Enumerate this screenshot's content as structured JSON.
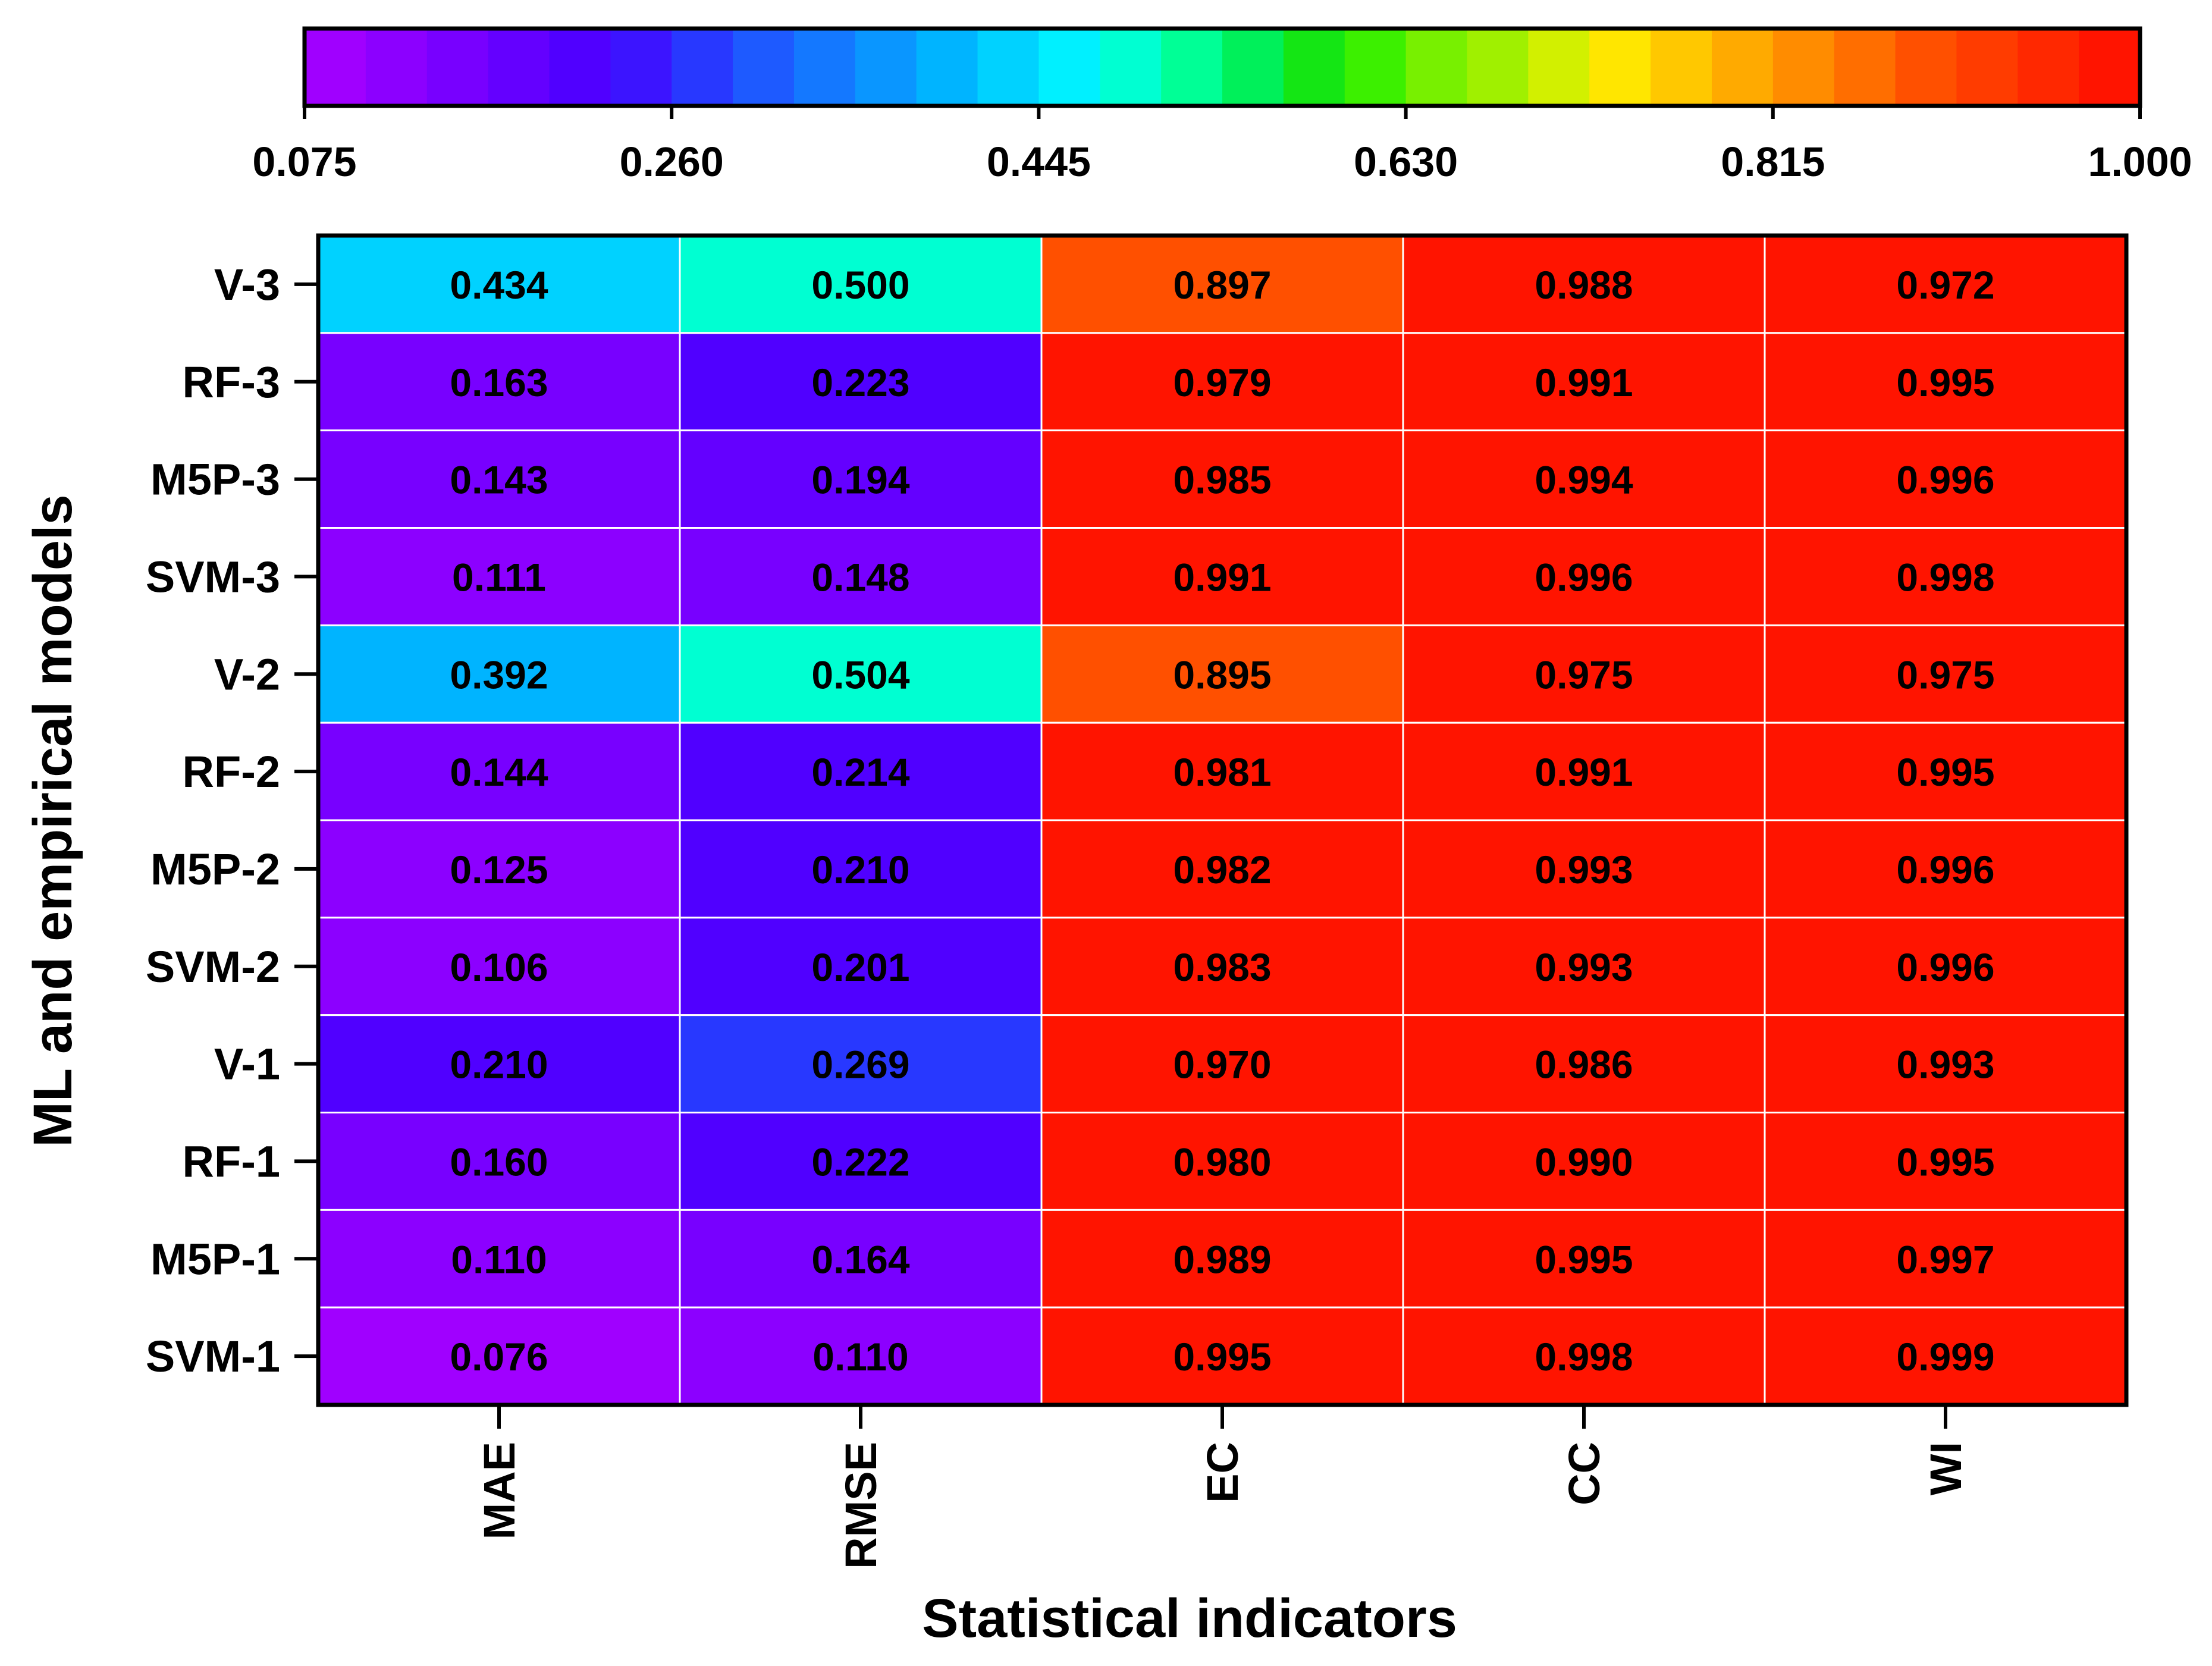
{
  "chart_data": {
    "type": "heatmap",
    "title": "",
    "xlabel": "Statistical indicators",
    "ylabel": "ML and empirical models",
    "columns": [
      "MAE",
      "RMSE",
      "EC",
      "CC",
      "WI"
    ],
    "rows": [
      "V-3",
      "RF-3",
      "M5P-3",
      "SVM-3",
      "V-2",
      "RF-2",
      "M5P-2",
      "SVM-2",
      "V-1",
      "RF-1",
      "M5P-1",
      "SVM-1"
    ],
    "values": [
      [
        0.434,
        0.5,
        0.897,
        0.988,
        0.972
      ],
      [
        0.163,
        0.223,
        0.979,
        0.991,
        0.995
      ],
      [
        0.143,
        0.194,
        0.985,
        0.994,
        0.996
      ],
      [
        0.111,
        0.148,
        0.991,
        0.996,
        0.998
      ],
      [
        0.392,
        0.504,
        0.895,
        0.975,
        0.975
      ],
      [
        0.144,
        0.214,
        0.981,
        0.991,
        0.995
      ],
      [
        0.125,
        0.21,
        0.982,
        0.993,
        0.996
      ],
      [
        0.106,
        0.201,
        0.983,
        0.993,
        0.996
      ],
      [
        0.21,
        0.269,
        0.97,
        0.986,
        0.993
      ],
      [
        0.16,
        0.222,
        0.98,
        0.99,
        0.995
      ],
      [
        0.11,
        0.164,
        0.989,
        0.995,
        0.997
      ],
      [
        0.076,
        0.11,
        0.995,
        0.998,
        0.999
      ]
    ],
    "value_labels": [
      [
        "0.434",
        "0.500",
        "0.897",
        "0.988",
        "0.972"
      ],
      [
        "0.163",
        "0.223",
        "0.979",
        "0.991",
        "0.995"
      ],
      [
        "0.143",
        "0.194",
        "0.985",
        "0.994",
        "0.996"
      ],
      [
        "0.111",
        "0.148",
        "0.991",
        "0.996",
        "0.998"
      ],
      [
        "0.392",
        "0.504",
        "0.895",
        "0.975",
        "0.975"
      ],
      [
        "0.144",
        "0.214",
        "0.981",
        "0.991",
        "0.995"
      ],
      [
        "0.125",
        "0.210",
        "0.982",
        "0.993",
        "0.996"
      ],
      [
        "0.106",
        "0.201",
        "0.983",
        "0.993",
        "0.996"
      ],
      [
        "0.210",
        "0.269",
        "0.970",
        "0.986",
        "0.993"
      ],
      [
        "0.160",
        "0.222",
        "0.980",
        "0.990",
        "0.995"
      ],
      [
        "0.110",
        "0.164",
        "0.989",
        "0.995",
        "0.997"
      ],
      [
        "0.076",
        "0.110",
        "0.995",
        "0.998",
        "0.999"
      ]
    ],
    "colorbar": {
      "min": 0.075,
      "max": 1.0,
      "levels": 30,
      "orientation": "horizontal",
      "position": "top",
      "tick_values": [
        0.075,
        0.26,
        0.445,
        0.63,
        0.815,
        1.0
      ],
      "tick_labels": [
        "0.075",
        "0.260",
        "0.445",
        "0.630",
        "0.815",
        "1.000"
      ],
      "colors": [
        "#a000ff",
        "#8c00ff",
        "#7800ff",
        "#6400ff",
        "#5000ff",
        "#3c14ff",
        "#2838ff",
        "#1e5aff",
        "#1478ff",
        "#0a96ff",
        "#00b4ff",
        "#00d2ff",
        "#00f0ff",
        "#00ffd2",
        "#00ff96",
        "#00f05a",
        "#14e614",
        "#3cf000",
        "#78f000",
        "#a0f000",
        "#d2f000",
        "#ffe600",
        "#ffc800",
        "#ffaa00",
        "#ff8c00",
        "#ff6e00",
        "#ff5000",
        "#ff3c00",
        "#ff2800",
        "#ff1400",
        "#ff0000"
      ]
    },
    "grid": true
  }
}
